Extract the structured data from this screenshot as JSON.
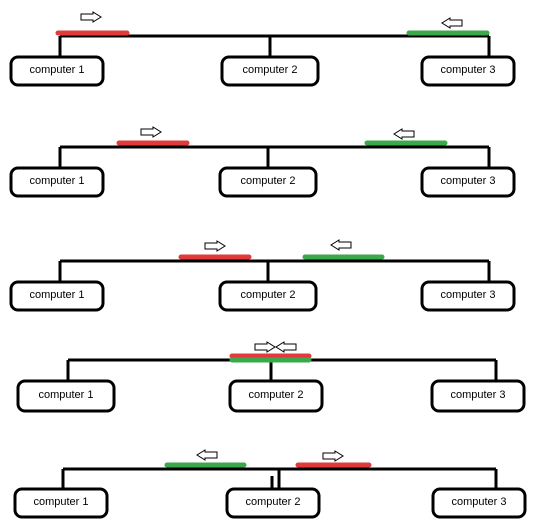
{
  "colors": {
    "wire": "#000000",
    "box_border": "#000000",
    "box_fill": "#ffffff",
    "sender_1_signal": "#e03a3a",
    "sender_3_signal": "#3aa84b",
    "arrow_outline": "#000000",
    "arrow_fill": "#ffffff"
  },
  "stages": [
    {
      "computers": [
        {
          "label": "computer 1"
        },
        {
          "label": "computer 2"
        },
        {
          "label": "computer 3"
        }
      ],
      "signals": [
        {
          "color": "red",
          "direction": "right"
        },
        {
          "color": "green",
          "direction": "left"
        }
      ]
    },
    {
      "computers": [
        {
          "label": "computer 1"
        },
        {
          "label": "computer 2"
        },
        {
          "label": "computer 3"
        }
      ],
      "signals": [
        {
          "color": "red",
          "direction": "right"
        },
        {
          "color": "green",
          "direction": "left"
        }
      ]
    },
    {
      "computers": [
        {
          "label": "computer 1"
        },
        {
          "label": "computer 2"
        },
        {
          "label": "computer 3"
        }
      ],
      "signals": [
        {
          "color": "red",
          "direction": "right"
        },
        {
          "color": "green",
          "direction": "left"
        }
      ]
    },
    {
      "computers": [
        {
          "label": "computer 1"
        },
        {
          "label": "computer 2"
        },
        {
          "label": "computer 3"
        }
      ],
      "signals": [
        {
          "color": "red",
          "direction": "right"
        },
        {
          "color": "green",
          "direction": "left"
        }
      ]
    },
    {
      "computers": [
        {
          "label": "computer 1"
        },
        {
          "label": "computer 2"
        },
        {
          "label": "computer 3"
        }
      ],
      "signals": [
        {
          "color": "green",
          "direction": "left"
        },
        {
          "color": "red",
          "direction": "right"
        }
      ]
    }
  ]
}
